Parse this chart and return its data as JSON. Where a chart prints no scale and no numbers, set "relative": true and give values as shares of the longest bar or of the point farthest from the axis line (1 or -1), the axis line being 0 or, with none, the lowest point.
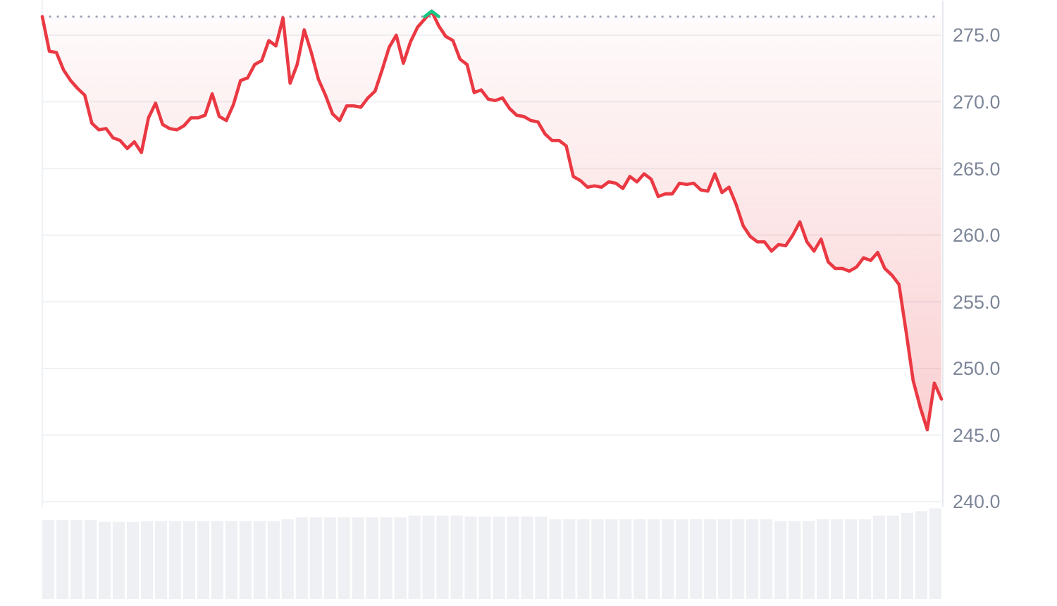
{
  "chart_data": [
    {
      "type": "line",
      "categories": [
        null,
        null,
        null,
        null,
        null,
        null,
        null,
        null,
        null,
        null,
        null,
        null,
        null,
        null,
        null,
        null,
        null,
        null,
        null,
        null,
        null,
        null,
        null,
        null,
        null,
        null,
        null,
        null,
        null,
        null,
        null,
        null,
        null,
        null,
        null,
        null,
        null,
        null,
        null,
        null,
        null,
        null,
        null,
        null,
        null,
        null,
        null,
        null,
        null,
        null,
        null,
        null,
        null,
        null,
        null,
        null,
        null,
        null,
        null,
        null,
        null,
        null,
        null,
        null,
        null,
        null,
        null,
        null,
        null,
        null,
        null,
        null,
        null,
        null,
        null,
        null,
        null,
        null,
        null,
        null,
        null,
        null,
        null,
        null,
        null,
        null,
        null,
        null,
        null,
        null,
        null,
        null,
        null,
        null,
        null,
        null,
        null,
        null,
        null,
        null,
        null,
        null,
        null,
        null,
        null,
        null,
        null,
        null,
        null,
        null,
        null,
        null,
        null,
        null,
        null,
        null,
        null,
        null,
        null,
        null,
        null,
        null,
        null,
        null,
        null,
        null,
        null,
        null
      ],
      "series": [
        {
          "color": "#ea3943",
          "values": [
            276.4,
            273.8,
            273.7,
            272.4,
            271.6,
            271.0,
            270.5,
            268.4,
            267.9,
            268.0,
            267.3,
            267.1,
            266.5,
            267.0,
            266.2,
            268.8,
            269.9,
            268.3,
            268.0,
            267.9,
            268.2,
            268.8,
            268.8,
            269.0,
            270.6,
            268.9,
            268.6,
            269.8,
            271.6,
            271.8,
            272.8,
            273.1,
            274.6,
            274.2,
            276.3,
            271.4,
            272.8,
            275.4,
            273.7,
            271.7,
            270.5,
            269.1,
            268.6,
            269.7,
            269.7,
            269.6,
            270.3,
            270.8,
            272.4,
            274.1,
            275.0,
            272.9,
            274.5,
            275.6,
            276.2,
            276.8,
            275.7,
            274.9,
            274.6,
            273.2,
            272.8,
            270.7,
            270.9,
            270.2,
            270.1,
            270.3,
            269.5,
            269.0,
            268.9,
            268.6,
            268.5,
            267.6,
            267.1,
            267.1,
            266.7,
            264.4,
            264.1,
            263.6,
            263.7,
            263.6,
            264.0,
            263.9,
            263.5,
            264.4,
            264.0,
            264.6,
            264.2,
            262.9,
            263.1,
            263.1,
            263.9,
            263.8,
            263.9,
            263.4,
            263.3,
            264.6,
            263.2,
            263.6,
            262.3,
            260.7,
            259.9,
            259.5,
            259.5,
            258.8,
            259.3,
            259.2,
            260.0,
            261.0,
            259.5,
            258.8,
            259.7,
            258.0,
            257.5,
            257.5,
            257.3,
            257.6,
            258.3,
            258.1,
            258.7,
            257.5,
            257.0,
            256.3,
            252.8,
            249.1,
            247.1,
            245.4,
            248.9,
            247.7
          ],
          "lower": [
            276.4,
            273.8,
            273.7,
            272.4,
            271.6,
            271.0,
            270.5,
            268.4,
            267.9,
            268.0,
            267.3,
            267.1,
            266.5,
            267.0,
            266.2,
            268.8,
            269.9,
            268.3,
            268.0,
            267.9,
            268.2,
            268.8,
            268.8,
            269.0,
            270.6,
            268.9,
            268.6,
            269.8,
            271.6,
            271.8,
            272.8,
            273.1,
            274.6,
            274.2,
            276.3,
            271.4,
            272.8,
            275.4,
            273.7,
            271.7,
            270.5,
            269.1,
            268.6,
            269.7,
            269.7,
            269.6,
            270.3,
            270.8,
            272.4,
            274.1,
            275.0,
            272.9,
            274.5,
            275.6,
            276.2,
            276.8,
            275.7,
            274.9,
            274.6,
            273.2,
            272.8,
            270.7,
            270.9,
            270.2,
            270.1,
            270.3,
            269.5,
            269.0,
            268.9,
            268.6,
            268.5,
            267.6,
            267.1,
            267.1,
            266.7,
            264.4,
            264.1,
            263.6,
            263.7,
            263.6,
            264.0,
            263.9,
            263.5,
            264.4,
            264.0,
            264.6,
            264.2,
            262.9,
            263.1,
            263.1,
            263.9,
            263.8,
            263.9,
            263.4,
            263.3,
            264.6,
            263.2,
            263.6,
            262.3,
            260.7,
            259.9,
            259.5,
            259.5,
            258.8,
            259.3,
            259.2,
            260.0,
            261.0,
            259.5,
            258.8,
            259.7,
            258.0,
            257.5,
            257.5,
            257.3,
            257.6,
            258.3,
            258.1,
            258.7,
            257.5,
            257.0,
            256.3,
            252.8,
            249.1,
            247.1,
            245.4,
            248.9,
            247.7
          ],
          "upper": [
            276.4,
            276.4,
            276.4,
            276.4,
            276.4,
            276.4,
            276.4,
            276.4,
            276.4,
            276.4,
            276.4,
            276.4,
            276.4,
            276.4,
            276.4,
            276.4,
            276.4,
            276.4,
            276.4,
            276.4,
            276.4,
            276.4,
            276.4,
            276.4,
            276.4,
            276.4,
            276.4,
            276.4,
            276.4,
            276.4,
            276.4,
            276.4,
            276.4,
            276.4,
            276.4,
            276.4,
            276.4,
            276.4,
            276.4,
            276.4,
            276.4,
            276.4,
            276.4,
            276.4,
            276.4,
            276.4,
            276.4,
            276.4,
            276.4,
            276.4,
            276.4,
            276.4,
            276.4,
            276.4,
            276.4,
            276.4,
            276.4,
            276.4,
            276.4,
            276.4,
            276.4,
            276.4,
            276.4,
            276.4,
            276.4,
            276.4,
            276.4,
            276.4,
            276.4,
            276.4,
            276.4,
            276.4,
            276.4,
            276.4,
            276.4,
            276.4,
            276.4,
            276.4,
            276.4,
            276.4,
            276.4,
            276.4,
            276.4,
            276.4,
            276.4,
            276.4,
            276.4,
            276.4,
            276.4,
            276.4,
            276.4,
            276.4,
            276.4,
            276.4,
            276.4,
            276.4,
            276.4,
            276.4,
            276.4,
            276.4,
            276.4,
            276.4,
            276.4,
            276.4,
            276.4,
            276.4,
            276.4,
            276.4,
            276.4,
            276.4,
            276.4,
            276.4,
            276.4,
            276.4,
            276.4,
            276.4,
            276.4,
            276.4,
            276.4,
            276.4,
            276.4,
            276.4,
            276.4,
            276.4,
            276.4,
            276.4,
            276.4,
            276.4
          ]
        },
        {
          "color": "#16c784",
          "values": [
            null,
            null,
            null,
            null,
            null,
            null,
            null,
            null,
            null,
            null,
            null,
            null,
            null,
            null,
            null,
            null,
            null,
            null,
            null,
            null,
            null,
            null,
            null,
            null,
            null,
            null,
            null,
            null,
            null,
            null,
            null,
            null,
            null,
            null,
            null,
            null,
            null,
            null,
            null,
            null,
            null,
            null,
            null,
            null,
            null,
            null,
            null,
            null,
            null,
            null,
            null,
            null,
            null,
            null,
            276.4,
            276.8,
            276.4,
            null,
            null,
            null,
            null,
            null,
            null,
            null,
            null,
            null,
            null,
            null,
            null,
            null,
            null,
            null,
            null,
            null,
            null,
            null,
            null,
            null,
            null,
            null,
            null,
            null,
            null,
            null,
            null,
            null,
            null,
            null,
            null,
            null,
            null,
            null,
            null,
            null,
            null,
            null,
            null,
            null,
            null,
            null,
            null,
            null,
            null,
            null,
            null,
            null,
            null,
            null,
            null,
            null,
            null,
            null,
            null,
            null,
            null,
            null,
            null,
            null,
            null,
            null,
            null,
            null,
            null,
            null,
            null,
            null,
            null,
            null
          ]
        }
      ],
      "ylim": [
        239.6,
        277.6
      ],
      "yticks": [
        {
          "value": 240,
          "label": "240.0"
        },
        {
          "value": 245,
          "label": "245.0"
        },
        {
          "value": 250,
          "label": "250.0"
        },
        {
          "value": 255,
          "label": "255.0"
        },
        {
          "value": 260,
          "label": "260.0"
        },
        {
          "value": 265,
          "label": "265.0"
        },
        {
          "value": 270,
          "label": "270.0"
        },
        {
          "value": 275,
          "label": "275.0"
        }
      ],
      "grid": "y",
      "tick_labels": "y",
      "ref_lines": [
        {
          "axis": "y",
          "value": 276.4,
          "line_style": "dotted",
          "color": "#98a1b3"
        }
      ]
    },
    {
      "type": "bar",
      "relative": true,
      "color": "#eef0f3",
      "categories": [
        null,
        null,
        null,
        null,
        null,
        null,
        null,
        null,
        null,
        null,
        null,
        null,
        null,
        null,
        null,
        null,
        null,
        null,
        null,
        null,
        null,
        null,
        null,
        null,
        null,
        null,
        null,
        null,
        null,
        null,
        null,
        null,
        null,
        null,
        null,
        null,
        null,
        null,
        null,
        null,
        null,
        null,
        null,
        null,
        null,
        null,
        null,
        null,
        null,
        null,
        null,
        null,
        null,
        null,
        null,
        null,
        null,
        null,
        null,
        null,
        null,
        null,
        null,
        null
      ],
      "values": [
        0.87,
        0.87,
        0.87,
        0.87,
        0.85,
        0.85,
        0.85,
        0.86,
        0.86,
        0.86,
        0.86,
        0.86,
        0.86,
        0.86,
        0.86,
        0.86,
        0.86,
        0.88,
        0.9,
        0.9,
        0.9,
        0.9,
        0.9,
        0.9,
        0.9,
        0.9,
        0.92,
        0.92,
        0.92,
        0.92,
        0.91,
        0.91,
        0.91,
        0.91,
        0.91,
        0.91,
        0.88,
        0.88,
        0.88,
        0.88,
        0.88,
        0.88,
        0.88,
        0.88,
        0.88,
        0.88,
        0.88,
        0.88,
        0.88,
        0.88,
        0.88,
        0.88,
        0.86,
        0.86,
        0.86,
        0.88,
        0.88,
        0.88,
        0.88,
        0.92,
        0.92,
        0.95,
        0.97,
        1
      ]
    }
  ]
}
